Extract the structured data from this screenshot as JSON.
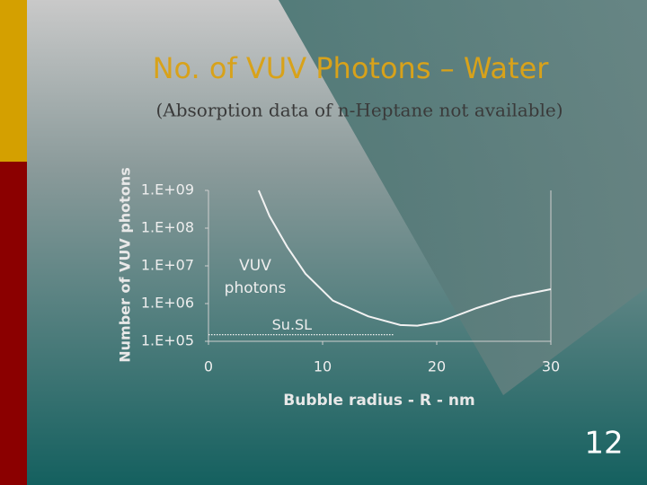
{
  "slide": {
    "title": "No. of VUV Photons – Water",
    "subtitle": "(Absorption data of n-Heptane not available)",
    "page_number": "12"
  },
  "chart_data": {
    "type": "line",
    "xlabel": "Bubble radius - R - nm",
    "ylabel": "Number of VUV photons",
    "annotation_lines": [
      "VUV",
      "photons"
    ],
    "yscale": "log",
    "xlim": [
      0,
      30
    ],
    "xticks": [
      0,
      10,
      20,
      30
    ],
    "ylim": [
      100000,
      1000000000
    ],
    "yticks": [
      {
        "value": 100000,
        "label": "1.E+05"
      },
      {
        "value": 1000000,
        "label": "1.E+06"
      },
      {
        "value": 10000000,
        "label": "1.E+07"
      },
      {
        "value": 100000000,
        "label": "1.E+08"
      },
      {
        "value": 1000000000,
        "label": "1.E+09"
      }
    ],
    "series": [
      {
        "name": "VUV photons",
        "color": "#f2f2f2",
        "style": "solid",
        "x": [
          4.4,
          5.35,
          6.9,
          8.5,
          10.9,
          14,
          16.8,
          18.3,
          20.3,
          23.5,
          26.6,
          30
        ],
        "values": [
          1000000000,
          210000000,
          32000000,
          6200000,
          1200000,
          460000,
          270000,
          260000,
          330000,
          760000,
          1500000,
          2400000
        ]
      },
      {
        "name": "Su.SL",
        "color": "#f2f2f2",
        "style": "dotted",
        "x": [
          0,
          16.2
        ],
        "values": [
          150000,
          150000
        ]
      }
    ]
  }
}
